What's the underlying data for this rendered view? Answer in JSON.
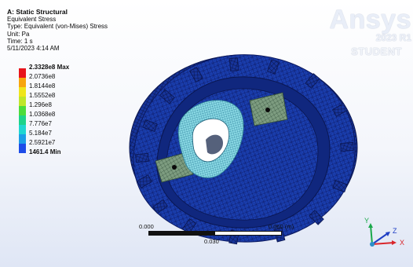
{
  "header": {
    "title": "A: Static Structural",
    "result": "Equivalent Stress",
    "type": "Type: Equivalent (von-Mises) Stress",
    "unit": "Unit: Pa",
    "time": "Time: 1 s",
    "timestamp": "5/11/2023 4:14 AM"
  },
  "legend": {
    "entries": [
      {
        "label": "2.3328e8 Max",
        "color": "#e8141c",
        "bold": true
      },
      {
        "label": "2.0736e8",
        "color": "#f7a50d",
        "bold": false
      },
      {
        "label": "1.8144e8",
        "color": "#efe51c",
        "bold": false
      },
      {
        "label": "1.5552e8",
        "color": "#bfe62a",
        "bold": false
      },
      {
        "label": "1.296e8",
        "color": "#4bdc3b",
        "bold": false
      },
      {
        "label": "1.0368e8",
        "color": "#1dd38a",
        "bold": false
      },
      {
        "label": "7.776e7",
        "color": "#20d6d1",
        "bold": false
      },
      {
        "label": "5.184e7",
        "color": "#1c9ee6",
        "bold": false
      },
      {
        "label": "2.5921e7",
        "color": "#1d4ce8",
        "bold": false
      },
      {
        "label": "1461.4 Min",
        "color": "#1a1fd2",
        "bold": true
      }
    ]
  },
  "brand": {
    "name": "Ansys",
    "version": "2023 R1",
    "edition": "STUDENT"
  },
  "scale": {
    "left_label": "0.000",
    "right_label": "0.060 (m)",
    "mid_label": "0.030"
  },
  "triad": {
    "x_label": "X",
    "y_label": "Y",
    "z_label": "Z"
  },
  "colors": {
    "mesh_blue": "#1a3fb0",
    "mesh_dark": "#0f1f70",
    "mesh_cyan": "#6fd6e2",
    "mesh_green": "#7fa080",
    "brand_text": "#ffffff"
  }
}
